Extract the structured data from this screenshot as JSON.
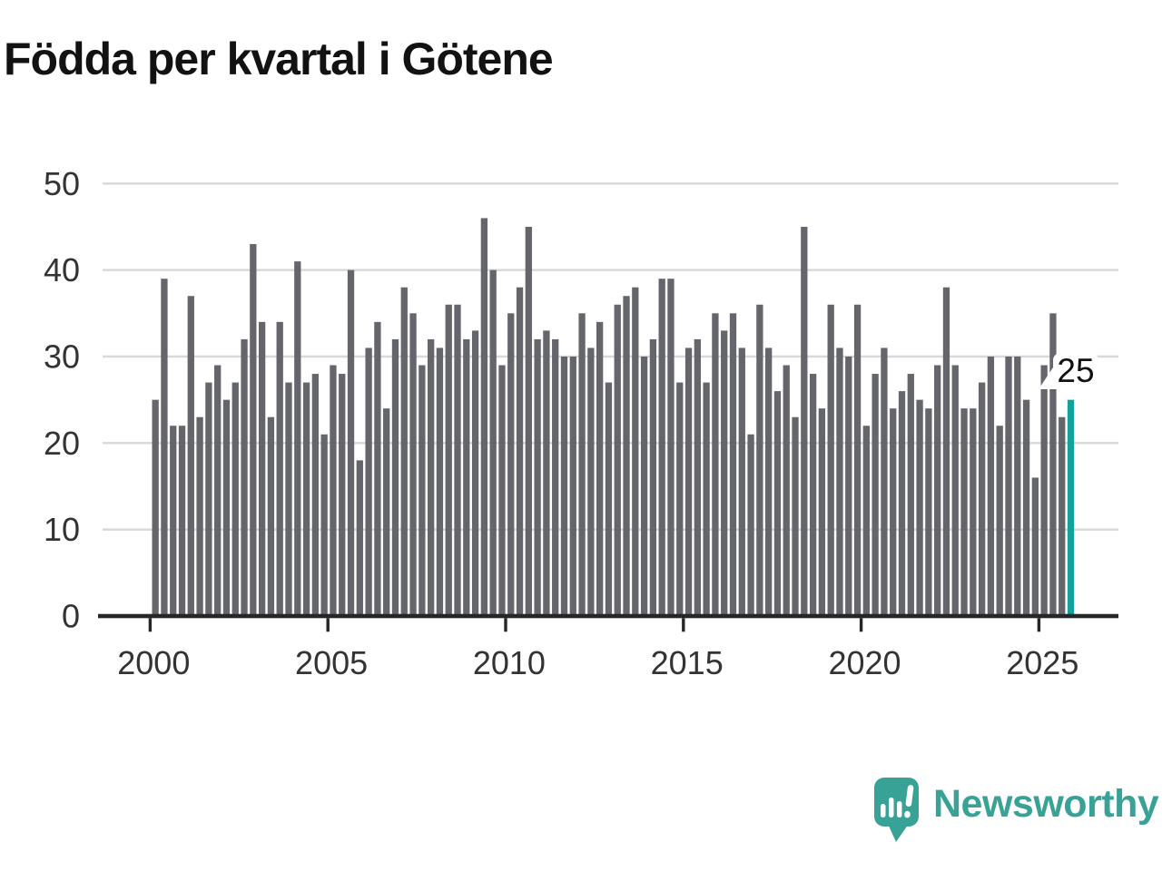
{
  "title": "Födda per kvartal i Götene",
  "annotation": {
    "label": "25"
  },
  "footer": {
    "brand": "Newsworthy"
  },
  "colors": {
    "bar": "#65656c",
    "highlight": "#12a19b",
    "grid": "#d9d9dd",
    "axis": "#262626",
    "tick_label": "#333333",
    "annotation_text": "#111111",
    "annotation_bubble": "#ffffff",
    "logo": "#38a296",
    "title": "#121212"
  },
  "chart_data": {
    "type": "bar",
    "title": "Födda per kvartal i Götene",
    "x_start": "2000 Q1",
    "x_frequency": "quarterly",
    "xticks": [
      "2000",
      "2005",
      "2010",
      "2015",
      "2020",
      "2025"
    ],
    "yticks": [
      0,
      10,
      20,
      30,
      40,
      50
    ],
    "ylim": [
      0,
      50
    ],
    "grid": true,
    "legend": false,
    "highlight_index": 103,
    "highlight_value": 25,
    "values": [
      25,
      39,
      22,
      22,
      37,
      23,
      27,
      29,
      25,
      27,
      32,
      43,
      34,
      23,
      34,
      27,
      41,
      27,
      28,
      21,
      29,
      28,
      40,
      18,
      31,
      34,
      24,
      32,
      38,
      35,
      29,
      32,
      31,
      36,
      36,
      32,
      33,
      46,
      40,
      29,
      35,
      38,
      45,
      32,
      33,
      32,
      30,
      30,
      35,
      31,
      34,
      27,
      36,
      37,
      38,
      30,
      32,
      39,
      39,
      27,
      31,
      32,
      27,
      35,
      33,
      35,
      31,
      21,
      36,
      31,
      26,
      29,
      23,
      45,
      28,
      24,
      36,
      31,
      30,
      36,
      22,
      28,
      31,
      24,
      26,
      28,
      25,
      24,
      29,
      38,
      29,
      24,
      24,
      27,
      30,
      22,
      30,
      30,
      25,
      16,
      29,
      35,
      23,
      25
    ]
  }
}
